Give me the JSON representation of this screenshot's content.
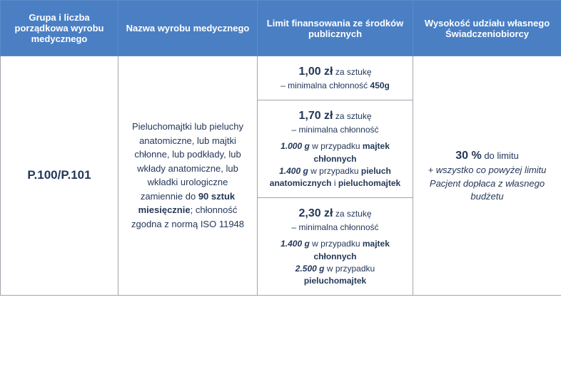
{
  "headers": {
    "col1": "Grupa i liczba porządkowa wyrobu medycznego",
    "col2": "Nazwa wyrobu medycznego",
    "col3": "Limit finansowania ze środków publicznych",
    "col4": "Wysokość udziału własnego Świadczeniobiorcy"
  },
  "code": "P.100/P.101",
  "description": {
    "part1": "Pieluchomajtki lub pieluchy anatomiczne, lub majtki chłonne, lub podkłady, lub wkłady anatomiczne, lub wkładki urologiczne zamiennie do ",
    "qty": "90 sztuk miesięcznie",
    "part2": "; chłonność zgodna z normą ISO 11948"
  },
  "limits": {
    "r1": {
      "price": "1,00 zł",
      "per": " za sztukę",
      "detail1": "– minimalna chłonność ",
      "g": "450g"
    },
    "r2": {
      "price": "1,70 zł",
      "per": " za sztukę",
      "detail1": "– minimalna chłonność",
      "g1": "1.000 g",
      "t1": " w przypadku ",
      "b1": "majtek chłonnych",
      "g2": "1.400 g",
      "t2": " w przypadku ",
      "b2a": "pieluch anatomicznych",
      "and": " i ",
      "b2b": "pieluchomajtek"
    },
    "r3": {
      "price": "2,30 zł",
      "per": " za sztukę",
      "detail1": "– minimalna chłonność",
      "g1": "1.400 g",
      "t1": " w przypadku ",
      "b1": "majtek chłonnych",
      "g2": "2.500 g",
      "t2": " w przypadku ",
      "b2": "pieluchomajtek"
    }
  },
  "share": {
    "percent": "30 %",
    "to_limit": " do limitu",
    "note": "+ wszystko co powyżej limitu Pacjent dopłaca z własnego budżetu"
  }
}
